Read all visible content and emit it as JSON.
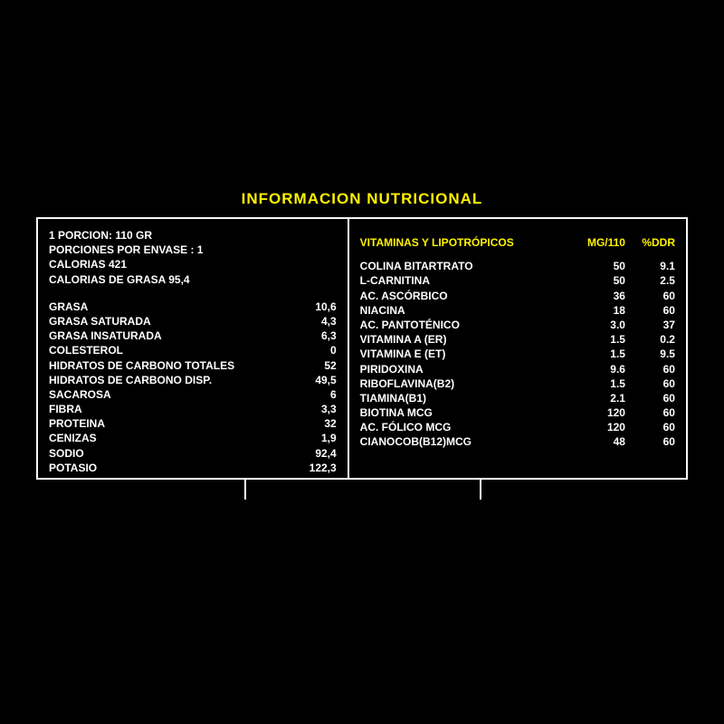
{
  "title": "INFORMACION NUTRICIONAL",
  "colors": {
    "background": "#000000",
    "text": "#ffffff",
    "accent": "#fff200",
    "border": "#ffffff"
  },
  "left": {
    "header": [
      "1 PORCION: 110 GR",
      "PORCIONES POR ENVASE : 1",
      "CALORIAS 421",
      "CALORIAS DE GRASA 95,4"
    ],
    "rows": [
      {
        "label": "GRASA",
        "value": "10,6"
      },
      {
        "label": "GRASA SATURADA",
        "value": "4,3"
      },
      {
        "label": "GRASA INSATURADA",
        "value": "6,3"
      },
      {
        "label": "COLESTEROL",
        "value": "0"
      },
      {
        "label": "HIDRATOS DE CARBONO TOTALES",
        "value": "52"
      },
      {
        "label": "HIDRATOS DE CARBONO DISP.",
        "value": "49,5"
      },
      {
        "label": "SACAROSA",
        "value": "6"
      },
      {
        "label": "FIBRA",
        "value": "3,3"
      },
      {
        "label": "PROTEINA",
        "value": "32"
      },
      {
        "label": "CENIZAS",
        "value": "1,9"
      },
      {
        "label": "SODIO",
        "value": "92,4"
      },
      {
        "label": "POTASIO",
        "value": "122,3"
      }
    ]
  },
  "right": {
    "headers": {
      "h0": "VITAMINAS Y LIPOTRÓPICOS",
      "h1": "MG/110",
      "h2": "%DDR"
    },
    "rows": [
      {
        "label": "COLINA BITARTRATO",
        "v1": "50",
        "v2": "9.1"
      },
      {
        "label": "L-CARNITINA",
        "v1": "50",
        "v2": "2.5"
      },
      {
        "label": "AC. ASCÓRBICO",
        "v1": "36",
        "v2": "60"
      },
      {
        "label": "NIACINA",
        "v1": "18",
        "v2": "60"
      },
      {
        "label": "AC. PANTOTÉNICO",
        "v1": "3.0",
        "v2": "37"
      },
      {
        "label": "VITAMINA A (ER)",
        "v1": "1.5",
        "v2": "0.2"
      },
      {
        "label": "VITAMINA E (ET)",
        "v1": "1.5",
        "v2": "9.5"
      },
      {
        "label": "PIRIDOXINA",
        "v1": "9.6",
        "v2": "60"
      },
      {
        "label": "RIBOFLAVINA(B2)",
        "v1": "1.5",
        "v2": "60"
      },
      {
        "label": "TIAMINA(B1)",
        "v1": "2.1",
        "v2": "60"
      },
      {
        "label": "BIOTINA MCG",
        "v1": "120",
        "v2": "60"
      },
      {
        "label": "AC. FÓLICO MCG",
        "v1": "120",
        "v2": "60"
      },
      {
        "label": "CIANOCOB(B12)MCG",
        "v1": "48",
        "v2": "60"
      }
    ]
  },
  "ticks": {
    "left_pct": 32,
    "right_pct": 68
  }
}
